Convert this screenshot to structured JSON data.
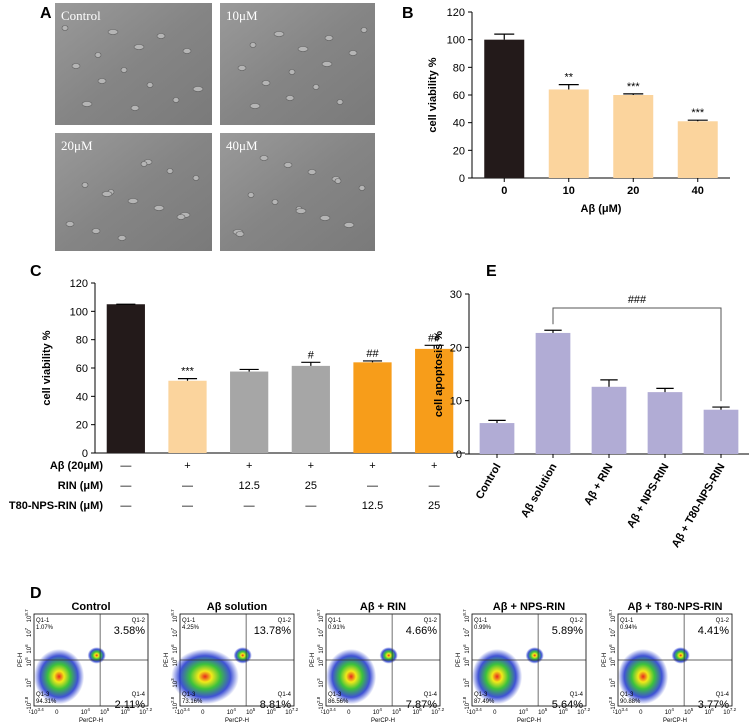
{
  "panel_letters": [
    "A",
    "B",
    "C",
    "D",
    "E"
  ],
  "panel_a": {
    "images": [
      "Control",
      "10μM",
      "20μM",
      "40μM"
    ]
  },
  "chart_data": [
    {
      "type": "bar",
      "ylabel": "cell viability %",
      "xlabel": "Aβ (μM)",
      "categories": [
        "0",
        "10",
        "20",
        "40"
      ],
      "values": [
        100,
        64,
        60,
        41
      ],
      "errors": [
        4,
        3.5,
        0.8,
        0.8
      ],
      "annotations": [
        null,
        "**",
        "***",
        "***"
      ],
      "colors": [
        "#231a1a",
        "#fbd49d",
        "#fbd49d",
        "#fbd49d"
      ],
      "ylim": [
        0,
        120
      ],
      "yticks": [
        0,
        20,
        40,
        60,
        80,
        100,
        120
      ]
    },
    {
      "type": "bar",
      "ylabel": "cell viability %",
      "values": [
        105,
        51,
        57.5,
        61.5,
        64,
        73.5
      ],
      "errors": [
        0,
        1.5,
        1.5,
        2.5,
        1,
        2.5
      ],
      "annotations": [
        null,
        "***",
        null,
        "#",
        "##",
        "##"
      ],
      "colors": [
        "#231a1a",
        "#fbd49d",
        "#a6a6a6",
        "#a6a6a6",
        "#f79d1a",
        "#f79d1a"
      ],
      "ylim": [
        0,
        120
      ],
      "yticks": [
        0,
        20,
        40,
        60,
        80,
        100,
        120
      ],
      "table": {
        "row_labels": [
          "Aβ (20μM)",
          "RIN (μM)",
          "T80-NPS-RIN (μM)"
        ],
        "rows": [
          [
            "—",
            "+",
            "+",
            "+",
            "+",
            "+"
          ],
          [
            "—",
            "—",
            "12.5",
            "25",
            "—",
            "—"
          ],
          [
            "—",
            "—",
            "—",
            "—",
            "12.5",
            "25"
          ]
        ]
      }
    },
    {
      "type": "bar",
      "ylabel": "cell apoptosis %",
      "categories": [
        "Control",
        "Aβ solution",
        "Aβ + RIN",
        "Aβ + NPS-RIN",
        "Aβ + T80-NPS-RIN"
      ],
      "values": [
        5.8,
        22.7,
        12.6,
        11.6,
        8.3
      ],
      "errors": [
        0.5,
        0.5,
        1.3,
        0.7,
        0.5
      ],
      "colors": [
        "#b1acd5",
        "#b1acd5",
        "#b1acd5",
        "#b1acd5",
        "#b1acd5"
      ],
      "ylim": [
        0,
        30
      ],
      "yticks": [
        0,
        10,
        20,
        30
      ],
      "bracket": {
        "text": "###",
        "from": 1,
        "to": 4
      }
    }
  ],
  "panel_d": {
    "xlabel": "PerCP-H",
    "ylabel": "PE-H",
    "xticks": [
      {
        "base": "-10",
        "sup": "3.4"
      },
      {
        "base": "0"
      },
      {
        "base": "10",
        "sup": "4"
      },
      {
        "base": "10",
        "sup": "5"
      },
      {
        "base": "10",
        "sup": "6"
      },
      {
        "base": "10",
        "sup": "7.2"
      }
    ],
    "yticks": [
      {
        "base": "10",
        "sup": "8.7"
      },
      {
        "base": "10",
        "sup": "7"
      },
      {
        "base": "10",
        "sup": "6"
      },
      {
        "base": "10",
        "sup": "5"
      },
      {
        "base": "10",
        "sup": "3"
      },
      {
        "base": "-10",
        "sup": "2.8"
      }
    ],
    "plots": [
      {
        "title": "Control",
        "q": [
          {
            "name": "Q1-1",
            "label": "1.07%"
          },
          {
            "name": "Q1-2",
            "label": "3.58%"
          },
          {
            "name": "Q1-3",
            "label": "94.31%"
          },
          {
            "name": "Q1-4",
            "label": "2.11%"
          }
        ]
      },
      {
        "title": "Aβ solution",
        "q": [
          {
            "name": "Q1-1",
            "label": "4.25%"
          },
          {
            "name": "Q1-2",
            "label": "13.78%"
          },
          {
            "name": "Q1-3",
            "label": "73.16%"
          },
          {
            "name": "Q1-4",
            "label": "8.81%"
          }
        ]
      },
      {
        "title": "Aβ + RIN",
        "q": [
          {
            "name": "Q1-1",
            "label": "0.91%"
          },
          {
            "name": "Q1-2",
            "label": "4.66%"
          },
          {
            "name": "Q1-3",
            "label": "86.56%"
          },
          {
            "name": "Q1-4",
            "label": "7.87%"
          }
        ]
      },
      {
        "title": "Aβ + NPS-RIN",
        "q": [
          {
            "name": "Q1-1",
            "label": "0.99%"
          },
          {
            "name": "Q1-2",
            "label": "5.89%"
          },
          {
            "name": "Q1-3",
            "label": "87.49%"
          },
          {
            "name": "Q1-4",
            "label": "5.64%"
          }
        ]
      },
      {
        "title": "Aβ + T80-NPS-RIN",
        "q": [
          {
            "name": "Q1-1",
            "label": "0.94%"
          },
          {
            "name": "Q1-2",
            "label": "4.41%"
          },
          {
            "name": "Q1-3",
            "label": "90.88%"
          },
          {
            "name": "Q1-4",
            "label": "3.77%"
          }
        ]
      }
    ]
  }
}
